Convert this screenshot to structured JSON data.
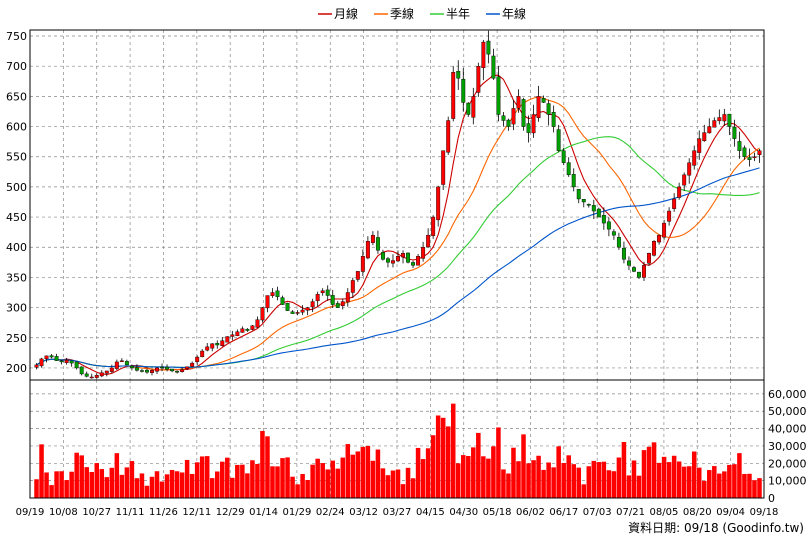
{
  "chart_data": [
    {
      "type": "candlestick",
      "title": "",
      "legend": {
        "position": "top-center",
        "items": [
          {
            "name": "月線",
            "color": "#cc0000"
          },
          {
            "name": "季線",
            "color": "#ff6600"
          },
          {
            "name": "半年",
            "color": "#33cc33"
          },
          {
            "name": "年線",
            "color": "#0055cc"
          }
        ]
      },
      "y_ticks": [
        200,
        250,
        300,
        350,
        400,
        450,
        500,
        550,
        600,
        650,
        700,
        750
      ],
      "ylim": [
        180,
        760
      ],
      "grid": true,
      "candle_up_color": "#ff0000",
      "candle_down_color": "#00a000",
      "close_series": [
        205,
        215,
        220,
        218,
        212,
        210,
        213,
        208,
        200,
        190,
        186,
        185,
        188,
        192,
        195,
        200,
        210,
        212,
        205,
        200,
        196,
        195,
        193,
        196,
        200,
        200,
        198,
        195,
        193,
        197,
        202,
        208,
        218,
        228,
        235,
        240,
        238,
        245,
        252,
        255,
        260,
        265,
        262,
        270,
        280,
        300,
        320,
        325,
        318,
        305,
        295,
        290,
        292,
        296,
        300,
        310,
        322,
        328,
        320,
        305,
        300,
        310,
        325,
        345,
        360,
        385,
        410,
        420,
        395,
        380,
        375,
        378,
        385,
        390,
        375,
        370,
        385,
        400,
        420,
        450,
        500,
        560,
        610,
        690,
        680,
        640,
        620,
        650,
        700,
        740,
        720,
        680,
        620,
        610,
        600,
        630,
        650,
        600,
        590,
        620,
        650,
        640,
        620,
        600,
        560,
        540,
        520,
        500,
        480,
        475,
        470,
        460,
        450,
        440,
        430,
        420,
        400,
        380,
        370,
        360,
        350,
        370,
        390,
        410,
        420,
        440,
        460,
        480,
        500,
        520,
        540,
        560,
        580,
        590,
        600,
        610,
        615,
        620,
        600,
        580,
        560,
        550,
        545,
        550,
        560
      ]
    },
    {
      "type": "bar",
      "title": "",
      "series_color": "#ff0000",
      "y_ticks": [
        0,
        10000,
        20000,
        30000,
        40000,
        50000,
        60000
      ],
      "y_tick_labels": [
        "0",
        "10,000",
        "20,000",
        "30,000",
        "40,000",
        "50,000",
        "60,000"
      ],
      "ylim": [
        0,
        68000
      ],
      "x_tick_labels": [
        "09/19",
        "10/08",
        "10/27",
        "11/11",
        "11/26",
        "12/11",
        "12/29",
        "01/14",
        "01/29",
        "02/24",
        "03/12",
        "03/27",
        "04/15",
        "04/30",
        "05/18",
        "06/02",
        "06/17",
        "07/03",
        "07/21",
        "08/05",
        "08/20",
        "09/04",
        "09/18"
      ]
    }
  ],
  "footer_text": "資料日期: 09/18  (Goodinfo.tw)"
}
